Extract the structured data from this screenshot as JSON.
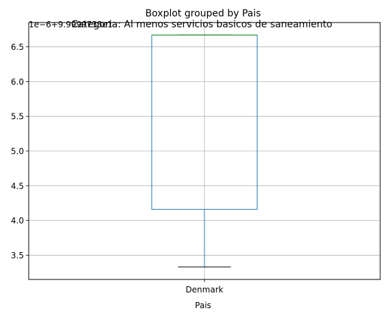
{
  "chart_data": {
    "type": "boxplot",
    "suptitle": "Boxplot grouped by Pais",
    "title": "Categoria: Al menos servicios basicos de saneamiento",
    "xlabel": "Pais",
    "ylabel": "",
    "offset_label": "1e−6+9.9999733e1",
    "categories": [
      "Denmark"
    ],
    "series": [
      {
        "category": "Denmark",
        "whisker_low": 3.33,
        "q1": 4.16,
        "median": 6.67,
        "q3": 6.67,
        "whisker_high": 6.67
      }
    ],
    "ylim": [
      3.15,
      6.85
    ],
    "yticks": [
      3.5,
      4.0,
      4.5,
      5.0,
      5.5,
      6.0,
      6.5
    ],
    "ytick_labels": [
      "3.5",
      "4.0",
      "4.5",
      "5.0",
      "5.5",
      "6.0",
      "6.5"
    ],
    "grid": true,
    "colors": {
      "box": "#1f77b4",
      "median": "#2ca02c",
      "whisker": "#1f77b4",
      "cap": "#000000",
      "grid": "#b0b0b0"
    }
  }
}
